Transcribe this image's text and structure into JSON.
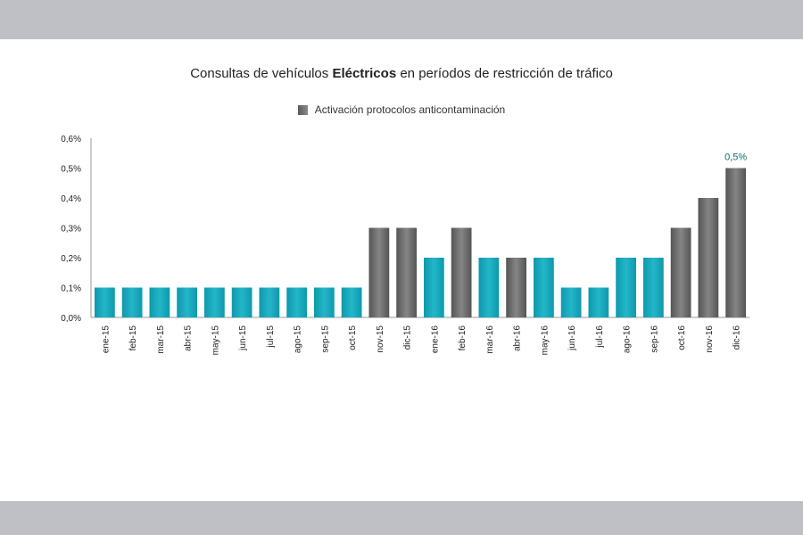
{
  "chart_data": {
    "type": "bar",
    "title_pre": "Consultas de vehículos ",
    "title_bold": "Eléctricos",
    "title_post": " en períodos de restricción de tráfico",
    "legend_label": "Activación protocolos anticontaminación",
    "colors": {
      "normal": "#19a9be",
      "protocol": "#6e6e6e"
    },
    "categories": [
      "ene-15",
      "feb-15",
      "mar-15",
      "abr-15",
      "may-15",
      "jun-15",
      "jul-15",
      "ago-15",
      "sep-15",
      "oct-15",
      "nov-15",
      "dic-15",
      "ene-16",
      "feb-16",
      "mar-16",
      "abr-16",
      "may-16",
      "jun-16",
      "jul-16",
      "ago-16",
      "sep-16",
      "oct-16",
      "nov-16",
      "dic-16"
    ],
    "values": [
      0.1,
      0.1,
      0.1,
      0.1,
      0.1,
      0.1,
      0.1,
      0.1,
      0.1,
      0.1,
      0.3,
      0.3,
      0.2,
      0.3,
      0.2,
      0.2,
      0.2,
      0.1,
      0.1,
      0.2,
      0.2,
      0.3,
      0.4,
      0.5
    ],
    "protocol_active": [
      false,
      false,
      false,
      false,
      false,
      false,
      false,
      false,
      false,
      false,
      true,
      true,
      false,
      true,
      false,
      true,
      false,
      false,
      false,
      false,
      false,
      true,
      true,
      true
    ],
    "ylim": [
      0,
      0.6
    ],
    "yticks": [
      "0,0%",
      "0,1%",
      "0,2%",
      "0,3%",
      "0,4%",
      "0,5%",
      "0,6%"
    ],
    "data_labels": [
      {
        "index": 23,
        "text": "0,5%"
      }
    ],
    "grid": false,
    "legend_position": "top-center"
  }
}
